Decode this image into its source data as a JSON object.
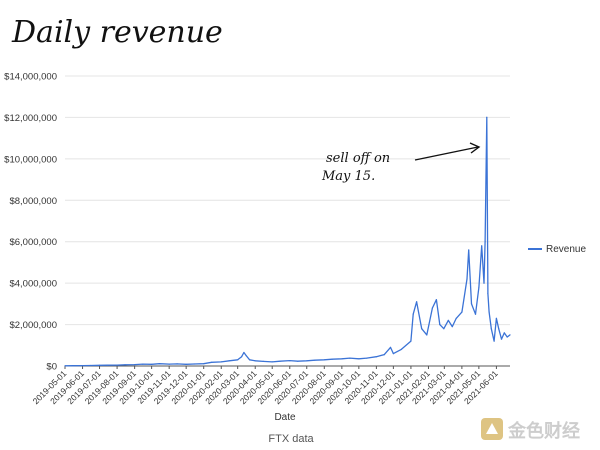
{
  "chart_data": {
    "type": "line",
    "title": "Daily revenue",
    "xlabel": "Date",
    "ylabel": "",
    "source": "FTX data",
    "legend_position": "right",
    "grid": true,
    "ylim": [
      0,
      14000000
    ],
    "y_ticks": [
      "$0",
      "$2,000,000",
      "$4,000,000",
      "$6,000,000",
      "$8,000,000",
      "$10,000,000",
      "$12,000,000",
      "$14,000,000"
    ],
    "y_tick_values": [
      0,
      2000000,
      4000000,
      6000000,
      8000000,
      10000000,
      12000000,
      14000000
    ],
    "x_ticks": [
      "2019-05-01",
      "2019-06-01",
      "2019-07-01",
      "2019-08-01",
      "2019-09-01",
      "2019-10-01",
      "2019-11-01",
      "2019-12-01",
      "2020-01-01",
      "2020-02-01",
      "2020-03-01",
      "2020-04-01",
      "2020-05-01",
      "2020-06-01",
      "2020-07-01",
      "2020-08-01",
      "2020-09-01",
      "2020-10-01",
      "2020-11-01",
      "2020-12-01",
      "2021-01-01",
      "2021-02-01",
      "2021-03-01",
      "2021-04-01",
      "2021-05-01",
      "2021-06-01"
    ],
    "xlim": [
      "2019-05-01",
      "2021-06-25"
    ],
    "series": [
      {
        "name": "Revenue",
        "color": "#3b73d6",
        "x": [
          "2019-05-01",
          "2019-05-15",
          "2019-06-01",
          "2019-06-15",
          "2019-07-01",
          "2019-07-15",
          "2019-08-01",
          "2019-08-15",
          "2019-09-01",
          "2019-09-15",
          "2019-10-01",
          "2019-10-15",
          "2019-11-01",
          "2019-11-15",
          "2019-12-01",
          "2019-12-15",
          "2020-01-01",
          "2020-01-15",
          "2020-02-01",
          "2020-02-15",
          "2020-03-01",
          "2020-03-08",
          "2020-03-12",
          "2020-03-16",
          "2020-03-22",
          "2020-04-01",
          "2020-04-15",
          "2020-05-01",
          "2020-05-15",
          "2020-06-01",
          "2020-06-15",
          "2020-07-01",
          "2020-07-15",
          "2020-08-01",
          "2020-08-15",
          "2020-09-01",
          "2020-09-15",
          "2020-10-01",
          "2020-10-15",
          "2020-11-01",
          "2020-11-15",
          "2020-11-26",
          "2020-12-01",
          "2020-12-15",
          "2021-01-01",
          "2021-01-05",
          "2021-01-11",
          "2021-01-20",
          "2021-01-29",
          "2021-02-08",
          "2021-02-15",
          "2021-02-21",
          "2021-02-28",
          "2021-03-08",
          "2021-03-15",
          "2021-03-22",
          "2021-04-01",
          "2021-04-10",
          "2021-04-13",
          "2021-04-18",
          "2021-04-25",
          "2021-05-01",
          "2021-05-06",
          "2021-05-10",
          "2021-05-12",
          "2021-05-15",
          "2021-05-17",
          "2021-05-19",
          "2021-05-23",
          "2021-05-28",
          "2021-06-01",
          "2021-06-05",
          "2021-06-10",
          "2021-06-15",
          "2021-06-20",
          "2021-06-25"
        ],
        "values": [
          10000,
          15000,
          20000,
          25000,
          35000,
          40000,
          45000,
          60000,
          70000,
          90000,
          80000,
          110000,
          90000,
          100000,
          80000,
          95000,
          110000,
          180000,
          200000,
          250000,
          300000,
          450000,
          650000,
          500000,
          300000,
          250000,
          220000,
          200000,
          230000,
          260000,
          230000,
          250000,
          280000,
          300000,
          330000,
          350000,
          380000,
          350000,
          380000,
          450000,
          550000,
          900000,
          600000,
          800000,
          1200000,
          2500000,
          3100000,
          1800000,
          1500000,
          2800000,
          3200000,
          2000000,
          1800000,
          2200000,
          1900000,
          2300000,
          2600000,
          4200000,
          5600000,
          3000000,
          2500000,
          3800000,
          5800000,
          4000000,
          6000000,
          12000000,
          3500000,
          2600000,
          1800000,
          1200000,
          2300000,
          1800000,
          1300000,
          1600000,
          1400000,
          1500000
        ]
      }
    ],
    "annotations": [
      {
        "text": "sell off on May 15.",
        "target_x": "2021-05-15",
        "target_y": 10500000
      }
    ]
  },
  "annotation_text": {
    "line1": "sell off on",
    "line2": "May 15."
  },
  "watermark": {
    "text": "金色财经"
  }
}
